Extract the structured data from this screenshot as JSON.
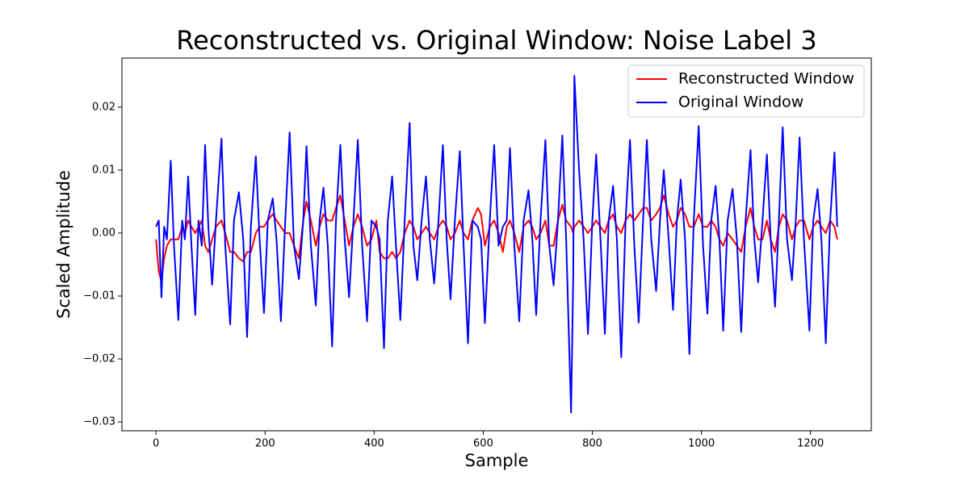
{
  "chart_data": {
    "type": "line",
    "title": "Reconstructed vs. Original Window: Noise Label 3",
    "x_label": "Sample",
    "y_label": "Scaled Amplitude",
    "legend": "upper right",
    "xlim": [
      -62.45,
      1311.45
    ],
    "ylim": [
      -0.0314,
      0.0278
    ],
    "xticks": [
      0,
      200,
      400,
      600,
      800,
      1000,
      1200
    ],
    "yticks": [
      {
        "value": -0.03,
        "label": "−0.03"
      },
      {
        "value": -0.02,
        "label": "−0.02"
      },
      {
        "value": -0.01,
        "label": "−0.01"
      },
      {
        "value": 0,
        "label": "0.00"
      },
      {
        "value": 0.01,
        "label": "0.01"
      },
      {
        "value": 0.02,
        "label": "0.02"
      }
    ],
    "x": [
      0,
      5,
      10,
      15,
      20,
      27,
      33,
      41,
      48,
      53,
      59,
      65,
      72,
      78,
      84,
      90,
      96,
      103,
      110,
      120,
      127,
      136,
      143,
      152,
      160,
      167,
      174,
      183,
      190,
      198,
      205,
      214,
      221,
      229,
      237,
      245,
      253,
      262,
      270,
      276,
      284,
      293,
      300,
      307,
      315,
      323,
      330,
      338,
      346,
      354,
      362,
      370,
      378,
      387,
      395,
      404,
      410,
      418,
      425,
      433,
      440,
      448,
      456,
      465,
      472,
      479,
      487,
      495,
      502,
      510,
      518,
      526,
      533,
      540,
      548,
      557,
      564,
      572,
      580,
      590,
      596,
      603,
      612,
      620,
      628,
      636,
      643,
      649,
      657,
      666,
      674,
      683,
      690,
      697,
      705,
      714,
      721,
      729,
      737,
      745,
      752,
      761,
      765,
      767,
      776,
      784,
      792,
      800,
      807,
      815,
      823,
      830,
      838,
      845,
      853,
      861,
      869,
      877,
      885,
      893,
      900,
      908,
      917,
      924,
      931,
      940,
      948,
      955,
      962,
      970,
      978,
      986,
      995,
      1003,
      1011,
      1018,
      1026,
      1033,
      1040,
      1048,
      1057,
      1065,
      1073,
      1081,
      1090,
      1097,
      1104,
      1112,
      1120,
      1127,
      1135,
      1142,
      1149,
      1157,
      1166,
      1173,
      1180,
      1188,
      1198,
      1205,
      1213,
      1220,
      1228,
      1236,
      1244,
      1249
    ],
    "series": [
      {
        "name": "Reconstructed Window",
        "color": "#ff0000",
        "values": [
          -0.001,
          -0.006,
          -0.0078,
          -0.004,
          -0.002,
          -0.001,
          -0.001,
          -0.001,
          0.001,
          0.0,
          0.002,
          0.001,
          0.0,
          0.001,
          0.002,
          -0.002,
          -0.003,
          -0.001,
          0.001,
          0.002,
          0.0,
          -0.003,
          -0.003,
          -0.004,
          -0.0045,
          -0.003,
          -0.003,
          0.0,
          0.001,
          0.001,
          0.002,
          0.003,
          0.002,
          0.001,
          0.0,
          0.0,
          -0.002,
          -0.004,
          0.002,
          0.005,
          0.002,
          -0.002,
          0.001,
          0.003,
          0.002,
          0.002,
          0.004,
          0.006,
          0.002,
          -0.002,
          0.001,
          0.003,
          0.001,
          -0.002,
          -0.001,
          0.002,
          -0.003,
          -0.004,
          -0.004,
          -0.003,
          -0.004,
          -0.003,
          0.0,
          0.002,
          0.001,
          -0.001,
          0.0,
          0.001,
          0.0,
          -0.001,
          0.001,
          0.002,
          0.001,
          -0.001,
          0.0,
          0.002,
          0.0,
          -0.001,
          0.002,
          0.004,
          0.003,
          -0.002,
          0.001,
          0.002,
          0.0,
          -0.003,
          0.001,
          0.002,
          0.0,
          -0.003,
          0.001,
          0.002,
          0.001,
          -0.001,
          0.0,
          0.002,
          -0.002,
          -0.002,
          0.002,
          0.0045,
          0.002,
          0.001,
          0.0,
          0.001,
          0.002,
          0.001,
          0.0,
          0.001,
          0.002,
          0.001,
          0.0,
          0.002,
          0.003,
          0.001,
          0.0,
          0.002,
          0.003,
          0.002,
          0.003,
          0.004,
          0.004,
          0.002,
          0.003,
          0.004,
          0.006,
          0.003,
          0.001,
          0.002,
          0.004,
          0.003,
          0.001,
          0.001,
          0.003,
          0.001,
          0.001,
          0.002,
          0.001,
          -0.001,
          -0.002,
          0.0,
          -0.001,
          -0.002,
          -0.003,
          0.001,
          0.004,
          0.001,
          -0.001,
          -0.001,
          0.002,
          -0.001,
          -0.003,
          0.001,
          0.003,
          0.002,
          -0.001,
          0.001,
          0.002,
          0.002,
          -0.001,
          0.001,
          0.002,
          0.001,
          0.0,
          0.002,
          0.001,
          -0.001
        ]
      },
      {
        "name": "Original Window",
        "color": "#0000ff",
        "values": [
          0.001,
          0.002,
          -0.0102,
          0.001,
          -0.001,
          0.0115,
          -0.002,
          -0.0138,
          0.002,
          -0.001,
          0.009,
          -0.002,
          -0.013,
          0.002,
          -0.002,
          0.014,
          0.001,
          -0.0082,
          0.002,
          0.015,
          -0.002,
          -0.0145,
          0.002,
          0.0065,
          -0.001,
          -0.0165,
          0.001,
          0.0122,
          -0.001,
          -0.0127,
          0.002,
          0.0055,
          -0.001,
          -0.014,
          0.002,
          0.016,
          -0.002,
          -0.0073,
          0.002,
          0.0138,
          -0.002,
          -0.0115,
          0.002,
          0.0072,
          -0.002,
          -0.018,
          0.002,
          0.014,
          -0.001,
          -0.0102,
          0.002,
          0.0148,
          -0.002,
          -0.014,
          0.002,
          0.001,
          -0.001,
          -0.0183,
          0.002,
          0.009,
          -0.002,
          -0.0138,
          0.002,
          0.0175,
          -0.002,
          -0.0075,
          0.002,
          0.009,
          -0.001,
          -0.008,
          0.002,
          0.014,
          -0.001,
          -0.0105,
          0.002,
          0.013,
          -0.002,
          -0.0175,
          0.002,
          0.001,
          -0.001,
          -0.0143,
          0.002,
          0.014,
          -0.002,
          0.001,
          0.002,
          0.0135,
          -0.002,
          -0.014,
          0.002,
          0.0068,
          -0.001,
          -0.013,
          0.002,
          0.0148,
          -0.002,
          -0.0083,
          0.002,
          0.0155,
          -0.001,
          -0.0285,
          -0.0068,
          0.025,
          0.0095,
          -0.001,
          -0.016,
          0.002,
          0.0125,
          -0.001,
          -0.016,
          0.002,
          0.0075,
          -0.001,
          -0.0197,
          0.002,
          0.0148,
          -0.002,
          -0.0142,
          0.002,
          0.0148,
          -0.001,
          -0.0092,
          0.002,
          0.01,
          -0.001,
          -0.0122,
          0.002,
          0.0085,
          -0.001,
          -0.0192,
          0.002,
          0.017,
          -0.002,
          -0.0128,
          0.002,
          0.0075,
          -0.001,
          -0.0155,
          0.002,
          0.007,
          -0.001,
          -0.0157,
          0.002,
          0.0132,
          -0.001,
          -0.0078,
          0.002,
          0.0125,
          -0.001,
          -0.0117,
          0.002,
          0.0168,
          -0.001,
          -0.0075,
          0.002,
          0.0152,
          -0.001,
          -0.0155,
          0.002,
          0.007,
          -0.001,
          -0.0175,
          0.002,
          0.0128,
          0.001
        ]
      }
    ]
  }
}
